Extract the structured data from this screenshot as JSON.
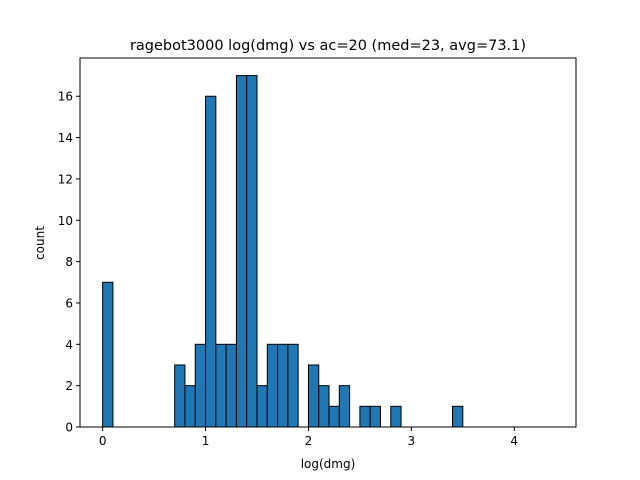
{
  "chart_data": {
    "type": "bar",
    "subtype": "histogram",
    "title": "ragebot3000 log(dmg) vs ac=20 (med=23, avg=73.1)",
    "xlabel": "log(dmg)",
    "ylabel": "count",
    "xlim": [
      -0.22,
      4.6
    ],
    "ylim": [
      0,
      17.85
    ],
    "xticks": [
      0,
      1,
      2,
      3,
      4
    ],
    "yticks": [
      0,
      2,
      4,
      6,
      8,
      10,
      12,
      14,
      16
    ],
    "grid": false,
    "legend": "none",
    "bar_color": "#1f77b4",
    "edge_color": "#000000",
    "bin_width": 0.1,
    "bins": [
      {
        "x": 0.0,
        "count": 7
      },
      {
        "x": 0.7,
        "count": 3
      },
      {
        "x": 0.8,
        "count": 2
      },
      {
        "x": 0.9,
        "count": 4
      },
      {
        "x": 1.0,
        "count": 16
      },
      {
        "x": 1.1,
        "count": 4
      },
      {
        "x": 1.2,
        "count": 4
      },
      {
        "x": 1.3,
        "count": 17
      },
      {
        "x": 1.4,
        "count": 17
      },
      {
        "x": 1.5,
        "count": 2
      },
      {
        "x": 1.6,
        "count": 4
      },
      {
        "x": 1.7,
        "count": 4
      },
      {
        "x": 1.8,
        "count": 4
      },
      {
        "x": 2.0,
        "count": 3
      },
      {
        "x": 2.1,
        "count": 2
      },
      {
        "x": 2.2,
        "count": 1
      },
      {
        "x": 2.3,
        "count": 2
      },
      {
        "x": 2.5,
        "count": 1
      },
      {
        "x": 2.6,
        "count": 1
      },
      {
        "x": 2.8,
        "count": 1
      },
      {
        "x": 3.4,
        "count": 1
      }
    ],
    "baseline_extent": [
      0.0,
      4.4
    ]
  }
}
